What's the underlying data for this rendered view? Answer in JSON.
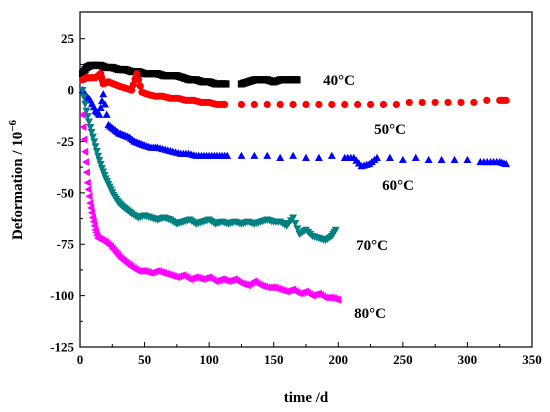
{
  "chart_data": {
    "type": "scatter",
    "xlabel": "time /d",
    "ylabel_main": "Deformation / 10",
    "ylabel_exp": "−6",
    "xlim": [
      0,
      350
    ],
    "ylim": [
      -125,
      38
    ],
    "xticks": [
      0,
      50,
      100,
      150,
      200,
      250,
      300,
      350
    ],
    "yticks": [
      25,
      0,
      -25,
      -50,
      -75,
      -100,
      -125
    ],
    "grid": false,
    "series": [
      {
        "name": "40°C",
        "color": "#000000",
        "marker": "square",
        "points": [
          [
            2,
            8
          ],
          [
            5,
            11
          ],
          [
            8,
            12
          ],
          [
            12,
            12
          ],
          [
            16,
            12
          ],
          [
            20,
            11
          ],
          [
            25,
            11
          ],
          [
            30,
            10
          ],
          [
            35,
            10
          ],
          [
            40,
            9
          ],
          [
            45,
            9
          ],
          [
            50,
            8
          ],
          [
            55,
            8
          ],
          [
            60,
            8
          ],
          [
            65,
            7
          ],
          [
            70,
            7
          ],
          [
            75,
            7
          ],
          [
            80,
            6
          ],
          [
            85,
            5
          ],
          [
            90,
            5
          ],
          [
            95,
            4
          ],
          [
            100,
            4
          ],
          [
            105,
            3
          ],
          [
            110,
            3
          ],
          [
            113,
            3
          ],
          [
            125,
            3
          ],
          [
            130,
            4
          ],
          [
            135,
            5
          ],
          [
            140,
            5
          ],
          [
            145,
            5
          ],
          [
            150,
            4
          ],
          [
            155,
            5
          ],
          [
            160,
            5
          ],
          [
            165,
            5
          ],
          [
            168,
            5
          ]
        ]
      },
      {
        "name": "50°C",
        "color": "#ff0000",
        "marker": "circle",
        "points": [
          [
            2,
            5
          ],
          [
            5,
            6
          ],
          [
            8,
            6
          ],
          [
            12,
            6
          ],
          [
            16,
            8
          ],
          [
            18,
            3
          ],
          [
            22,
            4
          ],
          [
            26,
            3
          ],
          [
            30,
            2
          ],
          [
            35,
            1
          ],
          [
            40,
            0
          ],
          [
            44,
            8
          ],
          [
            48,
            -1
          ],
          [
            52,
            -2
          ],
          [
            58,
            -3
          ],
          [
            64,
            -3
          ],
          [
            70,
            -4
          ],
          [
            76,
            -4
          ],
          [
            82,
            -5
          ],
          [
            88,
            -5
          ],
          [
            94,
            -6
          ],
          [
            100,
            -6
          ],
          [
            106,
            -7
          ],
          [
            112,
            -7
          ],
          [
            125,
            -7
          ],
          [
            135,
            -7
          ],
          [
            145,
            -7
          ],
          [
            155,
            -7
          ],
          [
            165,
            -7
          ],
          [
            175,
            -7
          ],
          [
            185,
            -7
          ],
          [
            195,
            -7
          ],
          [
            205,
            -7
          ],
          [
            215,
            -7
          ],
          [
            225,
            -7
          ],
          [
            235,
            -7
          ],
          [
            245,
            -7
          ],
          [
            255,
            -6
          ],
          [
            265,
            -6
          ],
          [
            275,
            -6
          ],
          [
            285,
            -6
          ],
          [
            295,
            -6
          ],
          [
            305,
            -6
          ],
          [
            315,
            -5
          ],
          [
            325,
            -5
          ],
          [
            330,
            -5
          ]
        ]
      },
      {
        "name": "60°C",
        "color": "#0000ff",
        "marker": "triangle-up",
        "points": [
          [
            2,
            0
          ],
          [
            5,
            -3
          ],
          [
            8,
            -5
          ],
          [
            12,
            -10
          ],
          [
            15,
            -12
          ],
          [
            18,
            -2
          ],
          [
            22,
            -17
          ],
          [
            26,
            -19
          ],
          [
            30,
            -21
          ],
          [
            34,
            -22
          ],
          [
            38,
            -23
          ],
          [
            42,
            -25
          ],
          [
            46,
            -26
          ],
          [
            50,
            -27
          ],
          [
            55,
            -28
          ],
          [
            60,
            -28
          ],
          [
            66,
            -29
          ],
          [
            72,
            -30
          ],
          [
            78,
            -31
          ],
          [
            84,
            -31
          ],
          [
            90,
            -32
          ],
          [
            96,
            -32
          ],
          [
            102,
            -32
          ],
          [
            108,
            -32
          ],
          [
            114,
            -32
          ],
          [
            125,
            -32
          ],
          [
            135,
            -32
          ],
          [
            145,
            -32
          ],
          [
            155,
            -33
          ],
          [
            165,
            -32
          ],
          [
            175,
            -33
          ],
          [
            185,
            -33
          ],
          [
            195,
            -32
          ],
          [
            205,
            -33
          ],
          [
            212,
            -33
          ],
          [
            218,
            -37
          ],
          [
            224,
            -36
          ],
          [
            230,
            -33
          ],
          [
            240,
            -33
          ],
          [
            250,
            -34
          ],
          [
            260,
            -33
          ],
          [
            270,
            -34
          ],
          [
            280,
            -34
          ],
          [
            290,
            -34
          ],
          [
            300,
            -34
          ],
          [
            310,
            -35
          ],
          [
            318,
            -35
          ],
          [
            325,
            -35
          ],
          [
            330,
            -36
          ]
        ]
      },
      {
        "name": "70°C",
        "color": "#008080",
        "marker": "triangle-down",
        "points": [
          [
            2,
            0
          ],
          [
            5,
            -10
          ],
          [
            8,
            -18
          ],
          [
            11,
            -25
          ],
          [
            14,
            -32
          ],
          [
            17,
            -38
          ],
          [
            20,
            -43
          ],
          [
            23,
            -47
          ],
          [
            26,
            -51
          ],
          [
            29,
            -54
          ],
          [
            32,
            -56
          ],
          [
            36,
            -58
          ],
          [
            40,
            -60
          ],
          [
            45,
            -62
          ],
          [
            50,
            -61
          ],
          [
            55,
            -62
          ],
          [
            60,
            -63
          ],
          [
            65,
            -62
          ],
          [
            70,
            -63
          ],
          [
            75,
            -65
          ],
          [
            80,
            -64
          ],
          [
            85,
            -63
          ],
          [
            90,
            -65
          ],
          [
            95,
            -64
          ],
          [
            100,
            -63
          ],
          [
            105,
            -65
          ],
          [
            110,
            -64
          ],
          [
            115,
            -65
          ],
          [
            120,
            -64
          ],
          [
            125,
            -65
          ],
          [
            130,
            -64
          ],
          [
            135,
            -65
          ],
          [
            140,
            -64
          ],
          [
            145,
            -63
          ],
          [
            150,
            -64
          ],
          [
            155,
            -64
          ],
          [
            160,
            -66
          ],
          [
            165,
            -62
          ],
          [
            170,
            -70
          ],
          [
            175,
            -68
          ],
          [
            180,
            -71
          ],
          [
            185,
            -72
          ],
          [
            190,
            -73
          ],
          [
            195,
            -71
          ],
          [
            198,
            -68
          ]
        ]
      },
      {
        "name": "80°C",
        "color": "#ff00ff",
        "marker": "triangle-left",
        "points": [
          [
            2,
            -12
          ],
          [
            4,
            -30
          ],
          [
            6,
            -45
          ],
          [
            8,
            -55
          ],
          [
            10,
            -62
          ],
          [
            12,
            -68
          ],
          [
            14,
            -72
          ],
          [
            17,
            -73
          ],
          [
            20,
            -74
          ],
          [
            24,
            -76
          ],
          [
            28,
            -79
          ],
          [
            32,
            -82
          ],
          [
            36,
            -84
          ],
          [
            40,
            -86
          ],
          [
            45,
            -88
          ],
          [
            50,
            -88
          ],
          [
            55,
            -89
          ],
          [
            60,
            -88
          ],
          [
            65,
            -89
          ],
          [
            70,
            -90
          ],
          [
            75,
            -91
          ],
          [
            80,
            -90
          ],
          [
            85,
            -92
          ],
          [
            90,
            -91
          ],
          [
            95,
            -92
          ],
          [
            100,
            -91
          ],
          [
            105,
            -93
          ],
          [
            110,
            -92
          ],
          [
            115,
            -93
          ],
          [
            120,
            -92
          ],
          [
            125,
            -94
          ],
          [
            130,
            -95
          ],
          [
            135,
            -93
          ],
          [
            140,
            -95
          ],
          [
            145,
            -96
          ],
          [
            150,
            -96
          ],
          [
            155,
            -97
          ],
          [
            160,
            -98
          ],
          [
            165,
            -97
          ],
          [
            170,
            -99
          ],
          [
            175,
            -98
          ],
          [
            180,
            -100
          ],
          [
            185,
            -99
          ],
          [
            190,
            -101
          ],
          [
            195,
            -101
          ],
          [
            200,
            -102
          ]
        ]
      }
    ]
  }
}
